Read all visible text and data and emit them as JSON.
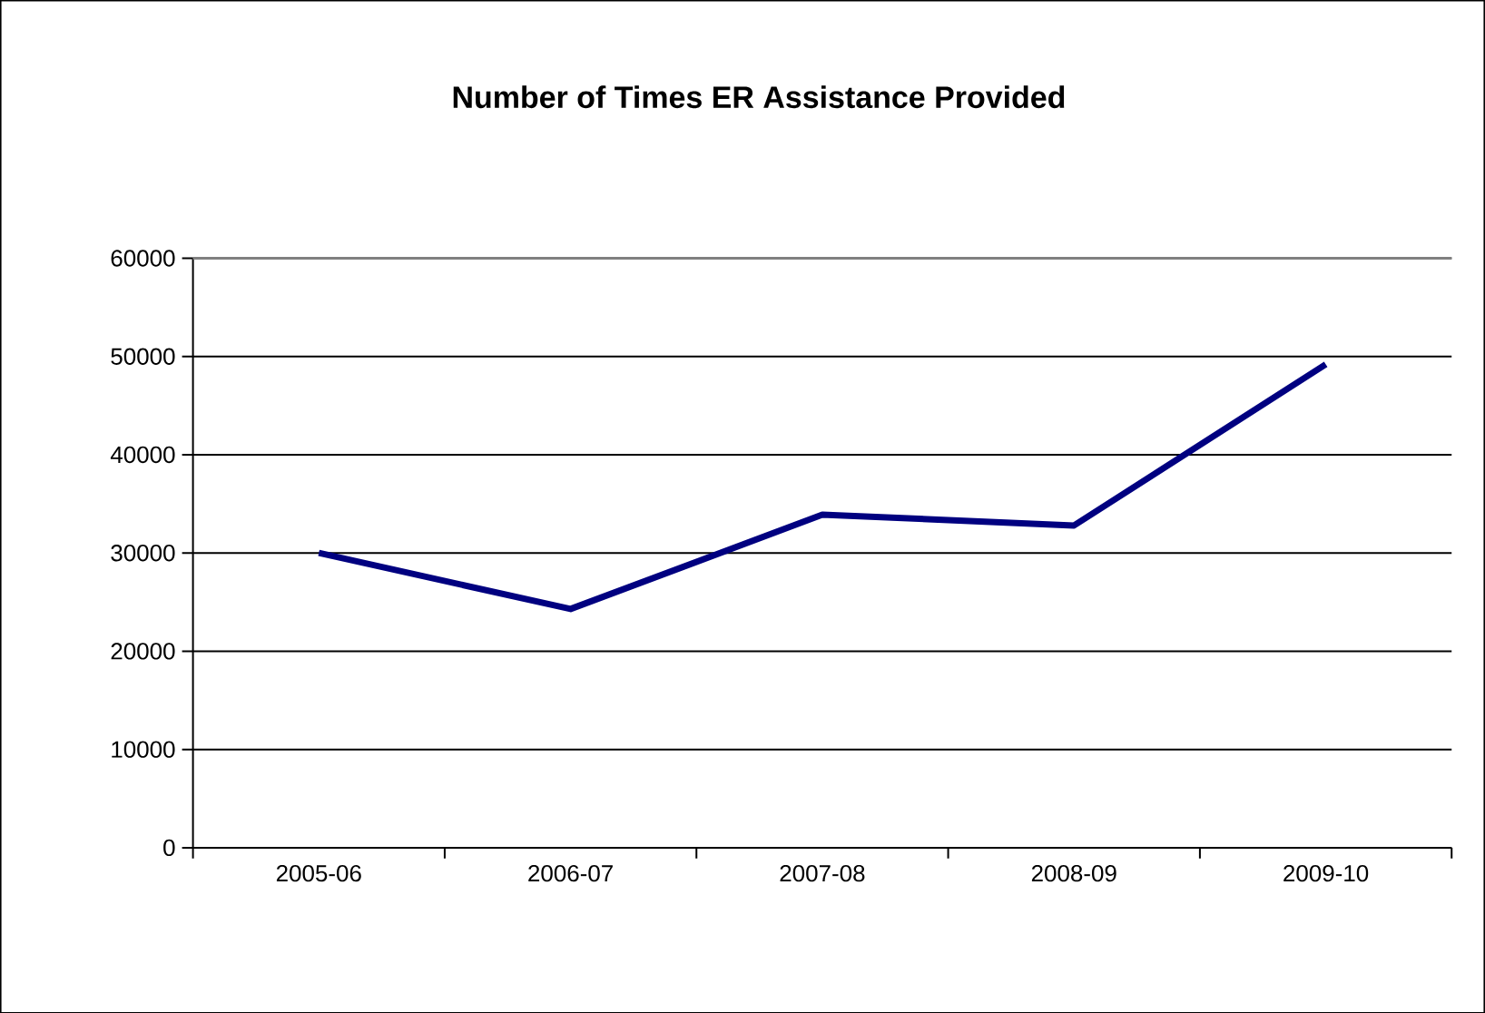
{
  "chart_data": {
    "type": "line",
    "title": "Number of Times ER Assistance Provided",
    "categories": [
      "2005-06",
      "2006-07",
      "2007-08",
      "2008-09",
      "2009-10"
    ],
    "series": [
      {
        "color": "#000080",
        "values": [
          30000,
          24300,
          33900,
          32800,
          49200
        ]
      }
    ],
    "ylim": [
      0,
      60000
    ],
    "yticks": [
      0,
      10000,
      20000,
      30000,
      40000,
      50000,
      60000
    ],
    "grid": "y",
    "marker": "none",
    "line_style": "solid"
  }
}
